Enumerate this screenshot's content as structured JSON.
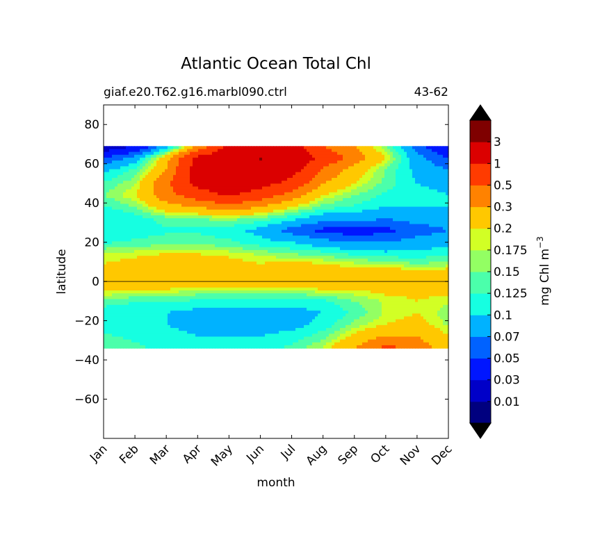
{
  "chart_data": {
    "type": "heatmap",
    "title": "Atlantic Ocean Total Chl",
    "subtitle_left": "giaf.e20.T62.g16.marbl090.ctrl",
    "subtitle_right": "43-62",
    "xlabel": "month",
    "ylabel": "latitude",
    "x_ticks": [
      "Jan",
      "Feb",
      "Mar",
      "Apr",
      "May",
      "Jun",
      "Jul",
      "Aug",
      "Sep",
      "Oct",
      "Nov",
      "Dec"
    ],
    "y_ticks": [
      80,
      60,
      40,
      20,
      0,
      -20,
      -40,
      -60
    ],
    "y_tick_labels": [
      "80",
      "60",
      "40",
      "20",
      "0",
      "−20",
      "−40",
      "−60"
    ],
    "ylim": [
      -80,
      90
    ],
    "data_lat_range": [
      -34,
      69
    ],
    "colorbar": {
      "label": "mg Chl m",
      "label_sup": "−3",
      "levels": [
        "0.01",
        "0.03",
        "0.05",
        "0.07",
        "0.1",
        "0.125",
        "0.15",
        "0.175",
        "0.2",
        "0.3",
        "0.5",
        "1",
        "3"
      ],
      "colors": [
        "#00007f",
        "#0000c8",
        "#0016ff",
        "#0062ff",
        "#00b2ff",
        "#16ffe1",
        "#4bffab",
        "#93ff63",
        "#d2ff25",
        "#ffc800",
        "#ff8200",
        "#ff3b00",
        "#db0000",
        "#7f0000"
      ],
      "extend": "both"
    },
    "latitudes": [
      69,
      63,
      57,
      50,
      44,
      38,
      32,
      26,
      20,
      14,
      9,
      4,
      0,
      -4,
      -10,
      -16,
      -22,
      -28,
      -34
    ],
    "series": [
      {
        "name": "Jan",
        "values": [
          0.02,
          0.05,
          0.09,
          0.13,
          0.15,
          0.12,
          0.1,
          0.1,
          0.12,
          0.18,
          0.2,
          0.25,
          0.28,
          0.22,
          0.14,
          0.11,
          0.11,
          0.13,
          0.14
        ]
      },
      {
        "name": "Feb",
        "values": [
          0.03,
          0.08,
          0.13,
          0.17,
          0.2,
          0.15,
          0.11,
          0.11,
          0.13,
          0.19,
          0.22,
          0.25,
          0.28,
          0.2,
          0.13,
          0.1,
          0.1,
          0.12,
          0.13
        ]
      },
      {
        "name": "Mar",
        "values": [
          0.08,
          0.25,
          0.3,
          0.45,
          0.4,
          0.25,
          0.14,
          0.12,
          0.14,
          0.2,
          0.3,
          0.25,
          0.28,
          0.2,
          0.13,
          0.1,
          0.1,
          0.11,
          0.12
        ]
      },
      {
        "name": "Apr",
        "values": [
          0.3,
          1.2,
          1.5,
          1.3,
          0.7,
          0.3,
          0.15,
          0.12,
          0.14,
          0.2,
          0.25,
          0.25,
          0.28,
          0.18,
          0.12,
          0.09,
          0.09,
          0.1,
          0.11
        ]
      },
      {
        "name": "May",
        "values": [
          1.3,
          1.8,
          2.0,
          1.7,
          1.1,
          0.4,
          0.16,
          0.11,
          0.13,
          0.19,
          0.22,
          0.25,
          0.28,
          0.18,
          0.12,
          0.09,
          0.09,
          0.1,
          0.11
        ]
      },
      {
        "name": "Jun",
        "values": [
          1.8,
          3.2,
          2.2,
          1.3,
          0.7,
          0.3,
          0.14,
          0.09,
          0.11,
          0.17,
          0.2,
          0.25,
          0.28,
          0.18,
          0.12,
          0.09,
          0.09,
          0.1,
          0.12
        ]
      },
      {
        "name": "Jul",
        "values": [
          1.5,
          2.0,
          1.4,
          0.8,
          0.4,
          0.2,
          0.11,
          0.06,
          0.1,
          0.15,
          0.22,
          0.25,
          0.28,
          0.18,
          0.11,
          0.09,
          0.09,
          0.11,
          0.13
        ]
      },
      {
        "name": "Aug",
        "values": [
          0.5,
          0.8,
          0.45,
          0.3,
          0.2,
          0.14,
          0.08,
          0.045,
          0.08,
          0.14,
          0.2,
          0.25,
          0.28,
          0.2,
          0.12,
          0.1,
          0.11,
          0.14,
          0.18
        ]
      },
      {
        "name": "Sep",
        "values": [
          0.3,
          0.4,
          0.25,
          0.2,
          0.15,
          0.12,
          0.08,
          0.04,
          0.07,
          0.12,
          0.18,
          0.25,
          0.28,
          0.2,
          0.15,
          0.13,
          0.16,
          0.22,
          0.3
        ]
      },
      {
        "name": "Oct",
        "values": [
          0.15,
          0.2,
          0.15,
          0.14,
          0.12,
          0.1,
          0.07,
          0.045,
          0.07,
          0.11,
          0.17,
          0.25,
          0.28,
          0.22,
          0.18,
          0.18,
          0.2,
          0.3,
          0.6
        ]
      },
      {
        "name": "Nov",
        "values": [
          0.06,
          0.08,
          0.09,
          0.1,
          0.11,
          0.1,
          0.08,
          0.06,
          0.08,
          0.11,
          0.15,
          0.25,
          0.28,
          0.22,
          0.2,
          0.2,
          0.22,
          0.3,
          0.4
        ]
      },
      {
        "name": "Dec",
        "values": [
          0.03,
          0.05,
          0.07,
          0.09,
          0.1,
          0.1,
          0.08,
          0.07,
          0.09,
          0.12,
          0.16,
          0.25,
          0.28,
          0.22,
          0.18,
          0.16,
          0.17,
          0.2,
          0.22
        ]
      }
    ]
  }
}
